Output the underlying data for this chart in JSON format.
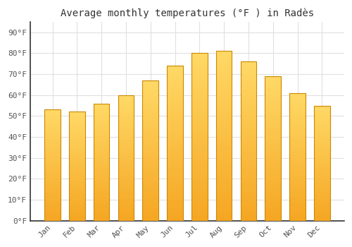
{
  "title": "Average monthly temperatures (°F ) in Radès",
  "months": [
    "Jan",
    "Feb",
    "Mar",
    "Apr",
    "May",
    "Jun",
    "Jul",
    "Aug",
    "Sep",
    "Oct",
    "Nov",
    "Dec"
  ],
  "values": [
    53,
    52,
    56,
    60,
    67,
    74,
    80,
    81,
    76,
    69,
    61,
    55
  ],
  "bar_color_top": "#FFD966",
  "bar_color_bottom": "#F5A623",
  "bar_edge_color": "#CC8800",
  "background_color": "#FFFFFF",
  "plot_bg_color": "#FFFFFF",
  "yticks": [
    0,
    10,
    20,
    30,
    40,
    50,
    60,
    70,
    80,
    90
  ],
  "ylim": [
    0,
    95
  ],
  "grid_color": "#E0E0E0",
  "title_fontsize": 10,
  "tick_fontsize": 8,
  "bar_width": 0.65
}
